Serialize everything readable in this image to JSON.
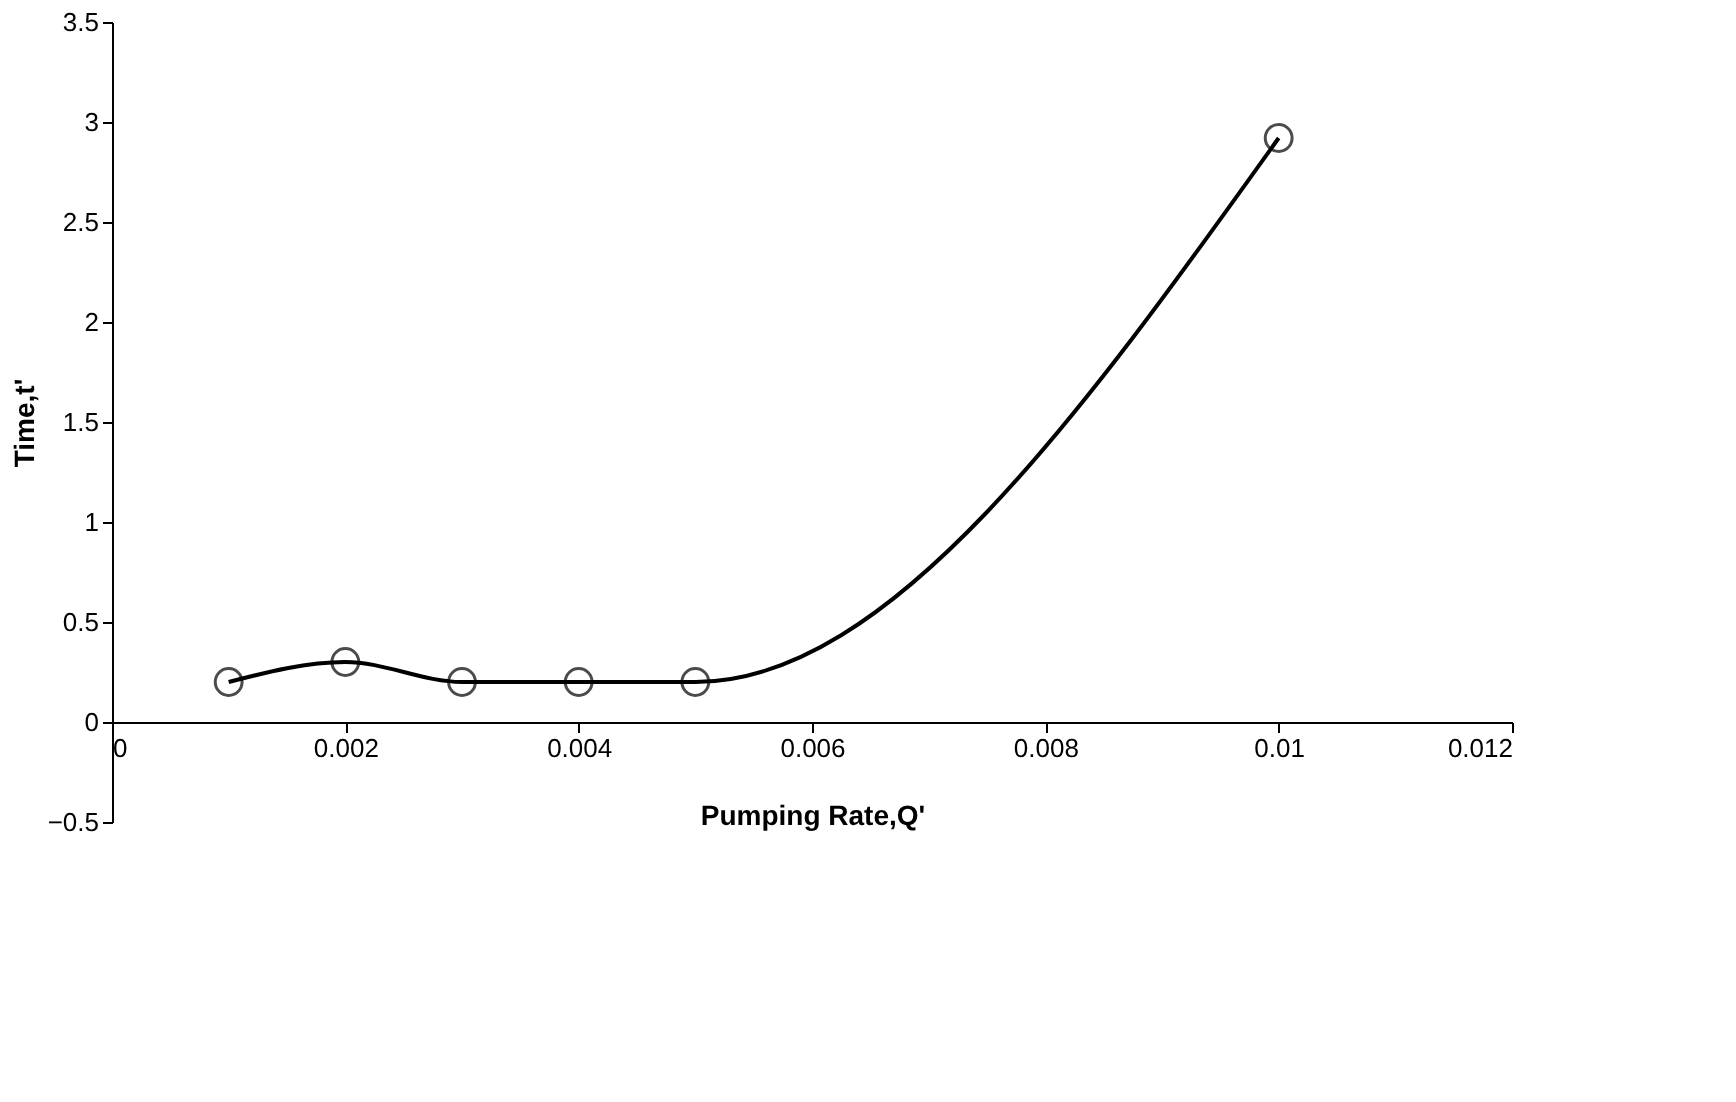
{
  "chart_data": {
    "type": "line",
    "xlabel": "Pumping Rate,Q'",
    "ylabel": "Time,t'",
    "x": [
      0.001,
      0.002,
      0.003,
      0.004,
      0.005,
      0.01
    ],
    "series": [
      {
        "color": "#000000",
        "values": [
          0.2,
          0.3,
          0.2,
          0.2,
          0.2,
          2.92
        ]
      }
    ],
    "xlim": [
      0,
      0.012
    ],
    "xticks": [
      0,
      0.002,
      0.004,
      0.006,
      0.008,
      0.01,
      0.012
    ],
    "ylim": [
      -0.5,
      3.5
    ],
    "yticks": [
      -0.5,
      0,
      0.5,
      1,
      1.5,
      2,
      2.5,
      3,
      3.5
    ],
    "grid": false,
    "marker": "circle",
    "line_style": "solid"
  }
}
